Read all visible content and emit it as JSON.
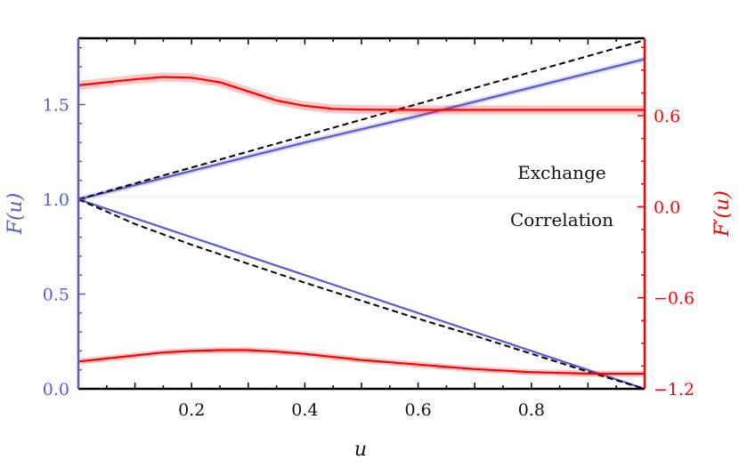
{
  "chart_data": {
    "type": "line",
    "xlabel": "u",
    "ylabel_left": "F(u)",
    "ylabel_right": "F′(u)",
    "xlim": [
      0,
      1
    ],
    "ylim_left": [
      0,
      1.85
    ],
    "ylim_right": [
      -1.2,
      1.11
    ],
    "x_ticks": [
      "0.2",
      "0.4",
      "0.6",
      "0.8"
    ],
    "x_tick_values": [
      0.2,
      0.4,
      0.6,
      0.8
    ],
    "y_left_ticks": [
      "0.0",
      "0.5",
      "1.0",
      "1.5"
    ],
    "y_left_tick_values": [
      0,
      0.5,
      1.0,
      1.5
    ],
    "y_right_ticks": [
      "−1.2",
      "−0.6",
      "0.0",
      "0.6"
    ],
    "y_right_tick_values": [
      -1.2,
      -0.6,
      0,
      0.6
    ],
    "annotations": {
      "exchange": "Exchange",
      "correlation": "Correlation"
    },
    "colors": {
      "left_axis": "#5a5acd",
      "right_axis": "#ff0000",
      "reference": "#000000"
    },
    "series": [
      {
        "axis": "left",
        "color": "#5a5acd",
        "style": "solid",
        "x": [
          0,
          0.1,
          0.2,
          0.3,
          0.4,
          0.5,
          0.6,
          0.7,
          0.8,
          0.9,
          1.0
        ],
        "y": [
          1.0,
          1.075,
          1.15,
          1.225,
          1.3,
          1.37,
          1.44,
          1.515,
          1.59,
          1.665,
          1.74
        ],
        "band": 0.015
      },
      {
        "axis": "left",
        "color": "#5a5acd",
        "style": "solid",
        "x": [
          0,
          0.1,
          0.2,
          0.3,
          0.4,
          0.5,
          0.6,
          0.7,
          0.8,
          0.9,
          1.0
        ],
        "y": [
          1.0,
          0.9,
          0.8,
          0.7,
          0.6,
          0.5,
          0.4,
          0.3,
          0.2,
          0.1,
          0.0
        ]
      },
      {
        "axis": "left",
        "color": "#000000",
        "style": "dashed",
        "x": [
          0,
          1.0
        ],
        "y": [
          1.0,
          1.84
        ]
      },
      {
        "axis": "left",
        "color": "#000000",
        "style": "dashed",
        "x": [
          0,
          0.1,
          0.2,
          0.3,
          0.4,
          0.5,
          0.6,
          0.7,
          0.8,
          0.9,
          1.0
        ],
        "y": [
          1.0,
          0.87,
          0.76,
          0.66,
          0.56,
          0.465,
          0.37,
          0.28,
          0.185,
          0.09,
          0.0
        ]
      },
      {
        "axis": "right",
        "color": "#ff0000",
        "style": "solid",
        "x": [
          0,
          0.05,
          0.1,
          0.15,
          0.2,
          0.25,
          0.3,
          0.35,
          0.4,
          0.45,
          0.5,
          0.6,
          0.7,
          0.8,
          0.9,
          1.0
        ],
        "y": [
          0.8,
          0.82,
          0.84,
          0.855,
          0.85,
          0.82,
          0.76,
          0.7,
          0.665,
          0.645,
          0.64,
          0.638,
          0.638,
          0.638,
          0.638,
          0.638
        ],
        "band": 0.03
      },
      {
        "axis": "right",
        "color": "#ff0000",
        "style": "solid",
        "x": [
          0,
          0.05,
          0.1,
          0.15,
          0.2,
          0.25,
          0.3,
          0.35,
          0.4,
          0.45,
          0.5,
          0.6,
          0.7,
          0.8,
          0.9,
          1.0
        ],
        "y": [
          -1.02,
          -1.0,
          -0.98,
          -0.96,
          -0.95,
          -0.945,
          -0.945,
          -0.955,
          -0.97,
          -0.99,
          -1.01,
          -1.04,
          -1.07,
          -1.09,
          -1.1,
          -1.1
        ],
        "band": 0.02
      }
    ]
  }
}
